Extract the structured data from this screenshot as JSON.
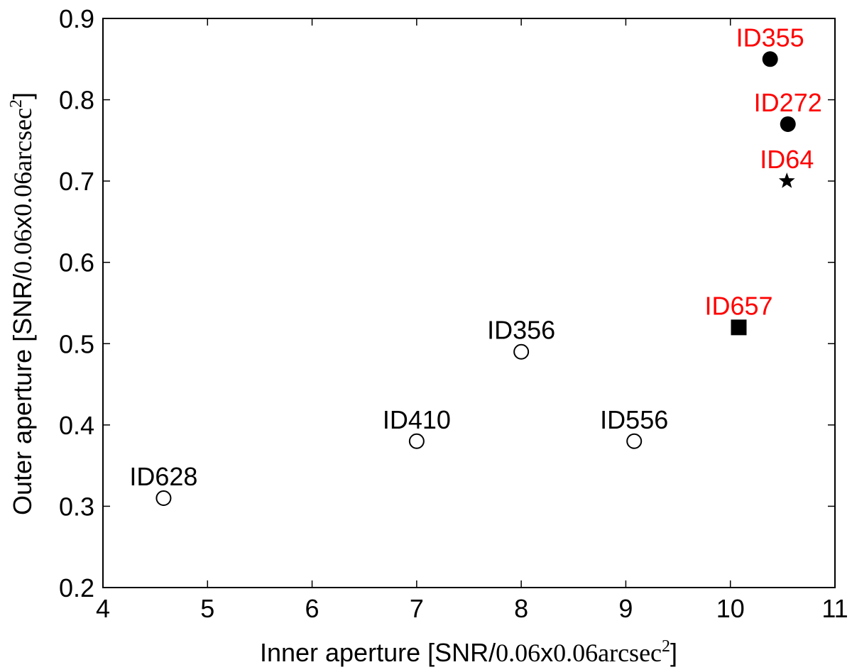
{
  "chart_data": {
    "type": "scatter",
    "xlabel": {
      "prefix": "Inner aperture [SNR/",
      "math": "0.06",
      "mid": "x",
      "math2": "0.06",
      "unit": "arcsec",
      "sup": "2",
      "suffix": "]"
    },
    "ylabel": {
      "prefix": "Outer aperture [SNR/",
      "math": "0.06",
      "mid": "x",
      "math2": "0.06",
      "unit": "arcsec",
      "sup": "2",
      "suffix": "]"
    },
    "xlim": [
      4,
      11
    ],
    "ylim": [
      0.2,
      0.9
    ],
    "xticks": [
      4,
      5,
      6,
      7,
      8,
      9,
      10,
      11
    ],
    "yticks": [
      0.2,
      0.3,
      0.4,
      0.5,
      0.6,
      0.7,
      0.8,
      0.9
    ],
    "grid": false,
    "colors": {
      "highlight": "#ff0000",
      "normal": "#000000"
    },
    "points": [
      {
        "id": "ID628",
        "x": 4.58,
        "y": 0.31,
        "marker": "circle-open",
        "label_color": "#000000"
      },
      {
        "id": "ID410",
        "x": 7.0,
        "y": 0.38,
        "marker": "circle-open",
        "label_color": "#000000"
      },
      {
        "id": "ID356",
        "x": 8.0,
        "y": 0.49,
        "marker": "circle-open",
        "label_color": "#000000"
      },
      {
        "id": "ID556",
        "x": 9.08,
        "y": 0.38,
        "marker": "circle-open",
        "label_color": "#000000"
      },
      {
        "id": "ID657",
        "x": 10.08,
        "y": 0.52,
        "marker": "square-filled",
        "label_color": "#ff0000"
      },
      {
        "id": "ID64",
        "x": 10.54,
        "y": 0.7,
        "marker": "star-filled",
        "label_color": "#ff0000"
      },
      {
        "id": "ID272",
        "x": 10.55,
        "y": 0.77,
        "marker": "circle-filled",
        "label_color": "#ff0000"
      },
      {
        "id": "ID355",
        "x": 10.38,
        "y": 0.85,
        "marker": "circle-filled",
        "label_color": "#ff0000"
      }
    ]
  }
}
